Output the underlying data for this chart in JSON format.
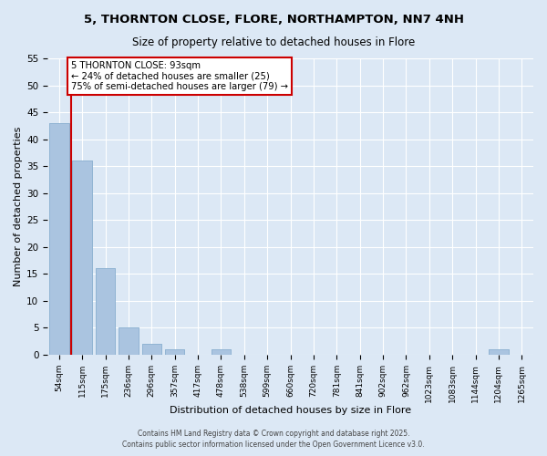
{
  "title": "5, THORNTON CLOSE, FLORE, NORTHAMPTON, NN7 4NH",
  "subtitle": "Size of property relative to detached houses in Flore",
  "xlabel": "Distribution of detached houses by size in Flore",
  "ylabel": "Number of detached properties",
  "footer_line1": "Contains HM Land Registry data © Crown copyright and database right 2025.",
  "footer_line2": "Contains public sector information licensed under the Open Government Licence v3.0.",
  "bin_labels": [
    "54sqm",
    "115sqm",
    "175sqm",
    "236sqm",
    "296sqm",
    "357sqm",
    "417sqm",
    "478sqm",
    "538sqm",
    "599sqm",
    "660sqm",
    "720sqm",
    "781sqm",
    "841sqm",
    "902sqm",
    "962sqm",
    "1023sqm",
    "1083sqm",
    "1144sqm",
    "1204sqm",
    "1265sqm"
  ],
  "bar_values": [
    43,
    36,
    16,
    5,
    2,
    1,
    0,
    1,
    0,
    0,
    0,
    0,
    0,
    0,
    0,
    0,
    0,
    0,
    0,
    1,
    0
  ],
  "bar_color": "#aac4e0",
  "property_line_label": "5 THORNTON CLOSE: 93sqm",
  "annotation_line2": "← 24% of detached houses are smaller (25)",
  "annotation_line3": "75% of semi-detached houses are larger (79) →",
  "ylim": [
    0,
    55
  ],
  "yticks": [
    0,
    5,
    10,
    15,
    20,
    25,
    30,
    35,
    40,
    45,
    50,
    55
  ],
  "bg_color": "#dce8f5",
  "grid_color": "#ffffff",
  "annotation_box_color": "#ffffff",
  "annotation_box_edge": "#cc0000",
  "property_line_color": "#cc0000",
  "property_line_xindex": 0.5
}
